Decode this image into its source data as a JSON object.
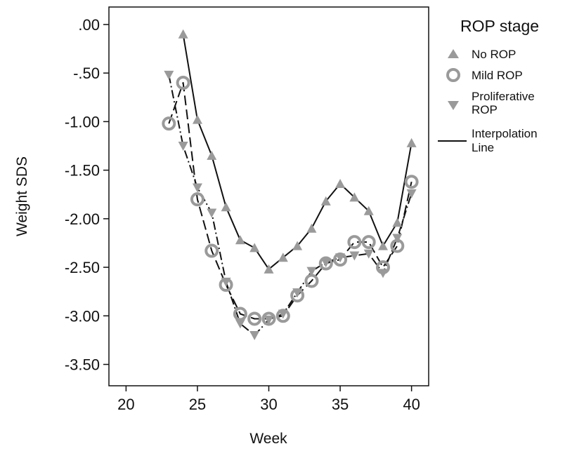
{
  "chart_data": {
    "type": "line",
    "title": "",
    "xlabel": "Week",
    "ylabel": "Weight SDS",
    "xlim": [
      18.8,
      41.2
    ],
    "ylim": [
      -3.72,
      0.18
    ],
    "x_ticks": [
      20,
      25,
      30,
      35,
      40
    ],
    "y_ticks": [
      0.0,
      -0.5,
      -1.0,
      -1.5,
      -2.0,
      -2.5,
      -3.0,
      -3.5
    ],
    "x_tick_labels": [
      "20",
      "25",
      "30",
      "35",
      "40"
    ],
    "y_tick_labels": [
      ".00",
      "-.50",
      "-1.00",
      "-1.50",
      "-2.00",
      "-2.50",
      "-3.00",
      "-3.50"
    ],
    "grid": false,
    "legend_position": "right",
    "legend_title": "ROP stage",
    "marker_color": "#9a9a9a",
    "line_color": "#111111",
    "series": [
      {
        "name": "No ROP",
        "marker": "triangle-up",
        "line_style": "solid",
        "x": [
          24,
          25,
          26,
          27,
          28,
          29,
          30,
          31,
          32,
          33,
          34,
          35,
          36,
          37,
          38,
          39,
          40
        ],
        "y": [
          -0.1,
          -0.98,
          -1.35,
          -1.88,
          -2.22,
          -2.3,
          -2.52,
          -2.4,
          -2.28,
          -2.1,
          -1.82,
          -1.64,
          -1.78,
          -1.92,
          -2.28,
          -2.04,
          -1.22
        ]
      },
      {
        "name": "Mild ROP",
        "marker": "circle-open",
        "line_style": "longdash",
        "x": [
          23,
          24,
          25,
          26,
          27,
          28,
          29,
          30,
          31,
          32,
          33,
          34,
          35,
          36,
          37,
          38,
          39,
          40
        ],
        "y": [
          -1.02,
          -0.6,
          -1.8,
          -2.33,
          -2.68,
          -2.98,
          -3.03,
          -3.03,
          -3.0,
          -2.79,
          -2.64,
          -2.46,
          -2.42,
          -2.24,
          -2.24,
          -2.5,
          -2.28,
          -1.62
        ]
      },
      {
        "name": "Proliferative ROP",
        "marker": "triangle-down",
        "line_style": "dashdot",
        "x": [
          23,
          24,
          25,
          26,
          27,
          28,
          29,
          30,
          31,
          32,
          33,
          34,
          35,
          36,
          37,
          38,
          39,
          40
        ],
        "y": [
          -0.52,
          -1.25,
          -1.68,
          -1.94,
          -2.65,
          -3.08,
          -3.2,
          -3.04,
          -2.98,
          -2.76,
          -2.54,
          -2.45,
          -2.4,
          -2.38,
          -2.36,
          -2.56,
          -2.2,
          -1.74
        ]
      }
    ],
    "legend_line_label": "Interpolation Line"
  }
}
